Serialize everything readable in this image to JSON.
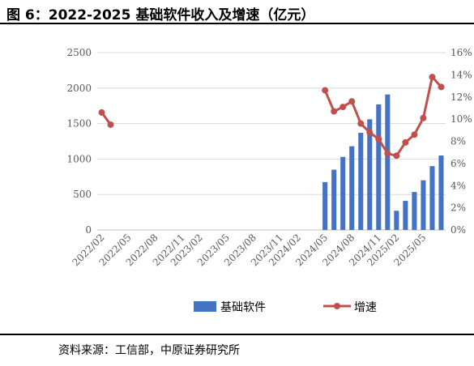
{
  "title": "图 6：2022-2025 基础软件收入及增速（亿元）",
  "source": "资料来源：工信部，中原证券研究所",
  "colors": {
    "bar": "#4472C4",
    "line": "#C0504D",
    "grid": "#D9D9D9"
  },
  "chart_data": {
    "type": "bar+line",
    "x": [
      "2022/02",
      "2022/03",
      "2022/04",
      "2022/05",
      "2022/06",
      "2022/07",
      "2022/08",
      "2022/09",
      "2022/10",
      "2022/11",
      "2022/12",
      "2023/02",
      "2023/03",
      "2023/04",
      "2023/05",
      "2023/06",
      "2023/07",
      "2023/08",
      "2023/09",
      "2023/10",
      "2023/11",
      "2023/12",
      "2024/02",
      "2024/03",
      "2024/04",
      "2024/05",
      "2024/06",
      "2024/07",
      "2024/08",
      "2024/09",
      "2024/10",
      "2024/11",
      "2024/12",
      "2025/02",
      "2025/03",
      "2025/04",
      "2025/05",
      "2025/06",
      "2025/07"
    ],
    "x_tick_labels": [
      "2022/02",
      "2022/05",
      "2022/08",
      "2022/11",
      "2023/02",
      "2023/05",
      "2023/08",
      "2023/11",
      "2024/02",
      "2024/05",
      "2024/08",
      "2024/11",
      "2025/02",
      "2025/05"
    ],
    "series": [
      {
        "name": "基础软件",
        "type": "bar",
        "axis": "left",
        "values": [
          null,
          null,
          null,
          null,
          null,
          null,
          null,
          null,
          null,
          null,
          null,
          null,
          null,
          null,
          null,
          null,
          null,
          null,
          null,
          null,
          null,
          null,
          null,
          null,
          null,
          675,
          850,
          1030,
          1180,
          1370,
          1560,
          1770,
          1910,
          270,
          410,
          535,
          700,
          900,
          1050
        ]
      },
      {
        "name": "增速",
        "type": "line",
        "axis": "right",
        "unit": "%",
        "values": [
          10.6,
          9.5,
          null,
          null,
          null,
          null,
          null,
          null,
          null,
          null,
          null,
          null,
          null,
          null,
          null,
          null,
          null,
          null,
          null,
          null,
          null,
          null,
          null,
          null,
          null,
          12.6,
          10.7,
          11.1,
          11.6,
          9.6,
          8.8,
          8.2,
          6.9,
          6.7,
          7.9,
          8.6,
          10.1,
          13.8,
          12.9
        ]
      }
    ],
    "y_left": {
      "ylim": [
        0,
        2500
      ],
      "ticks": [
        0,
        500,
        1000,
        1500,
        2000,
        2500
      ]
    },
    "y_right": {
      "ylim": [
        0,
        16
      ],
      "ticks": [
        "0%",
        "2%",
        "4%",
        "6%",
        "8%",
        "10%",
        "12%",
        "14%",
        "16%"
      ]
    },
    "grid": true,
    "legend": "bottom"
  }
}
